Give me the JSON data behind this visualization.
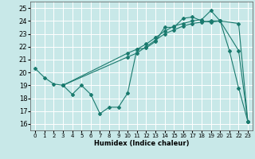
{
  "xlabel": "Humidex (Indice chaleur)",
  "xlim": [
    -0.5,
    23.5
  ],
  "ylim": [
    15.5,
    25.5
  ],
  "yticks": [
    16,
    17,
    18,
    19,
    20,
    21,
    22,
    23,
    24,
    25
  ],
  "xticks": [
    0,
    1,
    2,
    3,
    4,
    5,
    6,
    7,
    8,
    9,
    10,
    11,
    12,
    13,
    14,
    15,
    16,
    17,
    18,
    19,
    20,
    21,
    22,
    23
  ],
  "background_color": "#c8e8e8",
  "grid_color": "#ffffff",
  "line_color": "#1a7a6e",
  "series": [
    {
      "x": [
        0,
        1,
        2,
        3,
        4,
        5,
        6,
        7,
        8,
        9,
        10,
        11,
        12,
        13,
        14,
        15,
        16,
        17,
        18,
        19,
        20,
        21,
        22,
        23
      ],
      "y": [
        20.3,
        19.6,
        19.1,
        19.0,
        18.3,
        19.0,
        18.3,
        16.8,
        17.3,
        17.3,
        18.4,
        21.8,
        21.9,
        22.4,
        23.5,
        23.5,
        24.2,
        24.3,
        24.0,
        23.9,
        24.0,
        21.7,
        18.8,
        16.2
      ]
    },
    {
      "x": [
        3,
        10,
        11,
        12,
        13,
        14,
        15,
        16,
        17,
        18,
        19,
        20,
        22,
        23
      ],
      "y": [
        19.0,
        21.5,
        21.8,
        22.2,
        22.7,
        23.2,
        23.6,
        23.8,
        24.0,
        24.1,
        24.8,
        24.0,
        21.7,
        16.2
      ]
    },
    {
      "x": [
        3,
        10,
        11,
        12,
        13,
        14,
        15,
        16,
        17,
        18,
        19,
        20,
        22,
        23
      ],
      "y": [
        19.0,
        21.2,
        21.5,
        22.0,
        22.5,
        23.0,
        23.3,
        23.6,
        23.8,
        23.9,
        24.0,
        24.0,
        23.8,
        16.2
      ]
    }
  ]
}
